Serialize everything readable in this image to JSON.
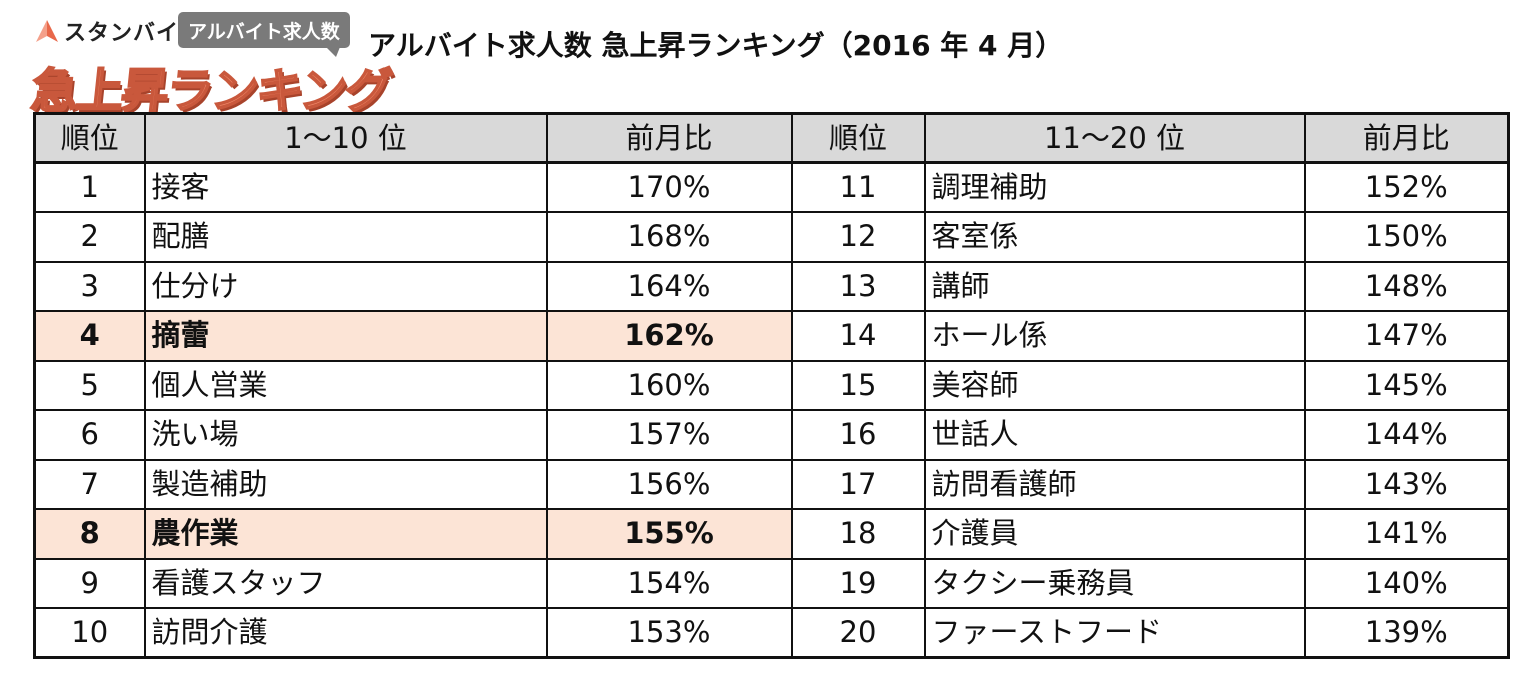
{
  "logo": {
    "brand": "スタンバイ",
    "tag": "アルバイト求人数",
    "main": "急上昇ランキング",
    "accent_color": "#f0896a"
  },
  "title": "アルバイト求人数 急上昇ランキング（2016 年 4 月）",
  "table": {
    "headers": {
      "rank": "順位",
      "left_group": "1～10 位",
      "ratio": "前月比",
      "right_group": "11～20 位"
    },
    "highlight_color": "#fce4d6",
    "rows": [
      {
        "left": {
          "rank": "1",
          "job": "接客",
          "ratio": "170%",
          "highlight": false
        },
        "right": {
          "rank": "11",
          "job": "調理補助",
          "ratio": "152%"
        }
      },
      {
        "left": {
          "rank": "2",
          "job": "配膳",
          "ratio": "168%",
          "highlight": false
        },
        "right": {
          "rank": "12",
          "job": "客室係",
          "ratio": "150%"
        }
      },
      {
        "left": {
          "rank": "3",
          "job": "仕分け",
          "ratio": "164%",
          "highlight": false
        },
        "right": {
          "rank": "13",
          "job": "講師",
          "ratio": "148%"
        }
      },
      {
        "left": {
          "rank": "4",
          "job": "摘蕾",
          "ratio": "162%",
          "highlight": true
        },
        "right": {
          "rank": "14",
          "job": "ホール係",
          "ratio": "147%"
        }
      },
      {
        "left": {
          "rank": "5",
          "job": "個人営業",
          "ratio": "160%",
          "highlight": false
        },
        "right": {
          "rank": "15",
          "job": "美容師",
          "ratio": "145%"
        }
      },
      {
        "left": {
          "rank": "6",
          "job": "洗い場",
          "ratio": "157%",
          "highlight": false
        },
        "right": {
          "rank": "16",
          "job": "世話人",
          "ratio": "144%"
        }
      },
      {
        "left": {
          "rank": "7",
          "job": "製造補助",
          "ratio": "156%",
          "highlight": false
        },
        "right": {
          "rank": "17",
          "job": "訪問看護師",
          "ratio": "143%"
        }
      },
      {
        "left": {
          "rank": "8",
          "job": "農作業",
          "ratio": "155%",
          "highlight": true
        },
        "right": {
          "rank": "18",
          "job": "介護員",
          "ratio": "141%"
        }
      },
      {
        "left": {
          "rank": "9",
          "job": "看護スタッフ",
          "ratio": "154%",
          "highlight": false
        },
        "right": {
          "rank": "19",
          "job": "タクシー乗務員",
          "ratio": "140%"
        }
      },
      {
        "left": {
          "rank": "10",
          "job": "訪問介護",
          "ratio": "153%",
          "highlight": false
        },
        "right": {
          "rank": "20",
          "job": "ファーストフード",
          "ratio": "139%"
        }
      }
    ]
  }
}
